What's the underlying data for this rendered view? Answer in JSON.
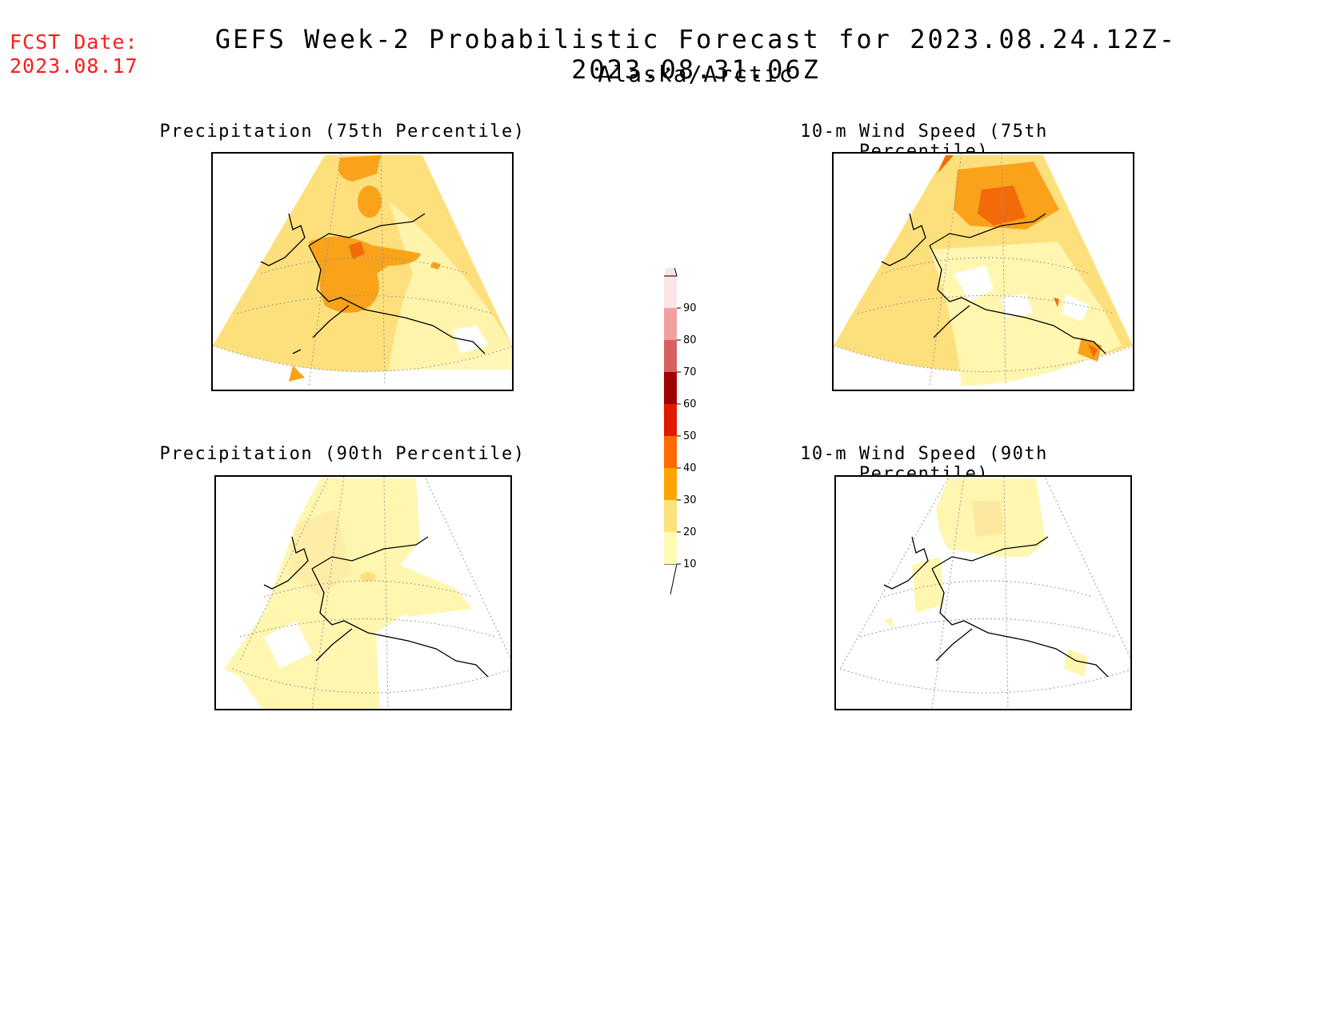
{
  "header": {
    "fcst_label": "FCST Date:",
    "fcst_date": "2023.08.17",
    "title": "GEFS Week-2 Probabilistic Forecast for 2023.08.24.12Z-2023.08.31.06Z",
    "subtitle": "Alaska/Arctic"
  },
  "panels": [
    {
      "id": "precip-75",
      "title": "Precipitation (75th Percentile)"
    },
    {
      "id": "wind-75",
      "title": "10-m Wind Speed (75th Percentile)"
    },
    {
      "id": "precip-90",
      "title": "Precipitation (90th Percentile)"
    },
    {
      "id": "wind-90",
      "title": "10-m Wind Speed (90th Percentile)"
    }
  ],
  "colorbar": {
    "levels": [
      "10",
      "20",
      "30",
      "40",
      "50",
      "60",
      "70",
      "80",
      "90"
    ],
    "colors": [
      "#fffab4",
      "#ffe27a",
      "#ffa500",
      "#ff6a00",
      "#e01b00",
      "#a00000",
      "#d76060",
      "#f0a0a0",
      "#fde4e4"
    ]
  },
  "colors": {
    "c10": "#fff6b0",
    "c20": "#fde07c",
    "c30": "#f9a21a",
    "c40": "#f26a0a",
    "fcst_text": "#ff1a1a"
  }
}
